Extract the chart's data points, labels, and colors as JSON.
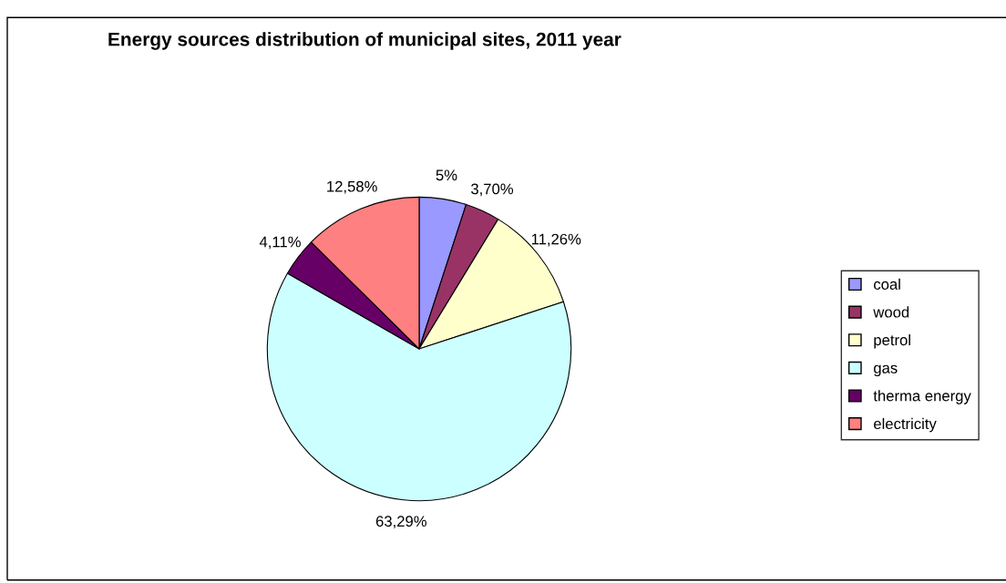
{
  "chart_data": {
    "type": "pie",
    "title": "Energy sources distribution of municipal sites, 2011 year",
    "categories": [
      "coal",
      "wood",
      "petrol",
      "gas",
      "therma energy",
      "electricity"
    ],
    "values": [
      5,
      3.7,
      11.26,
      63.29,
      4.11,
      12.58
    ],
    "colors": [
      "#9999ff",
      "#993366",
      "#ffffcc",
      "#ccffff",
      "#660066",
      "#ff8080"
    ],
    "value_labels": [
      "5%",
      "3,70%",
      "11,26%",
      "63,29%",
      "4,11%",
      "12,58%"
    ],
    "legend": "right"
  }
}
